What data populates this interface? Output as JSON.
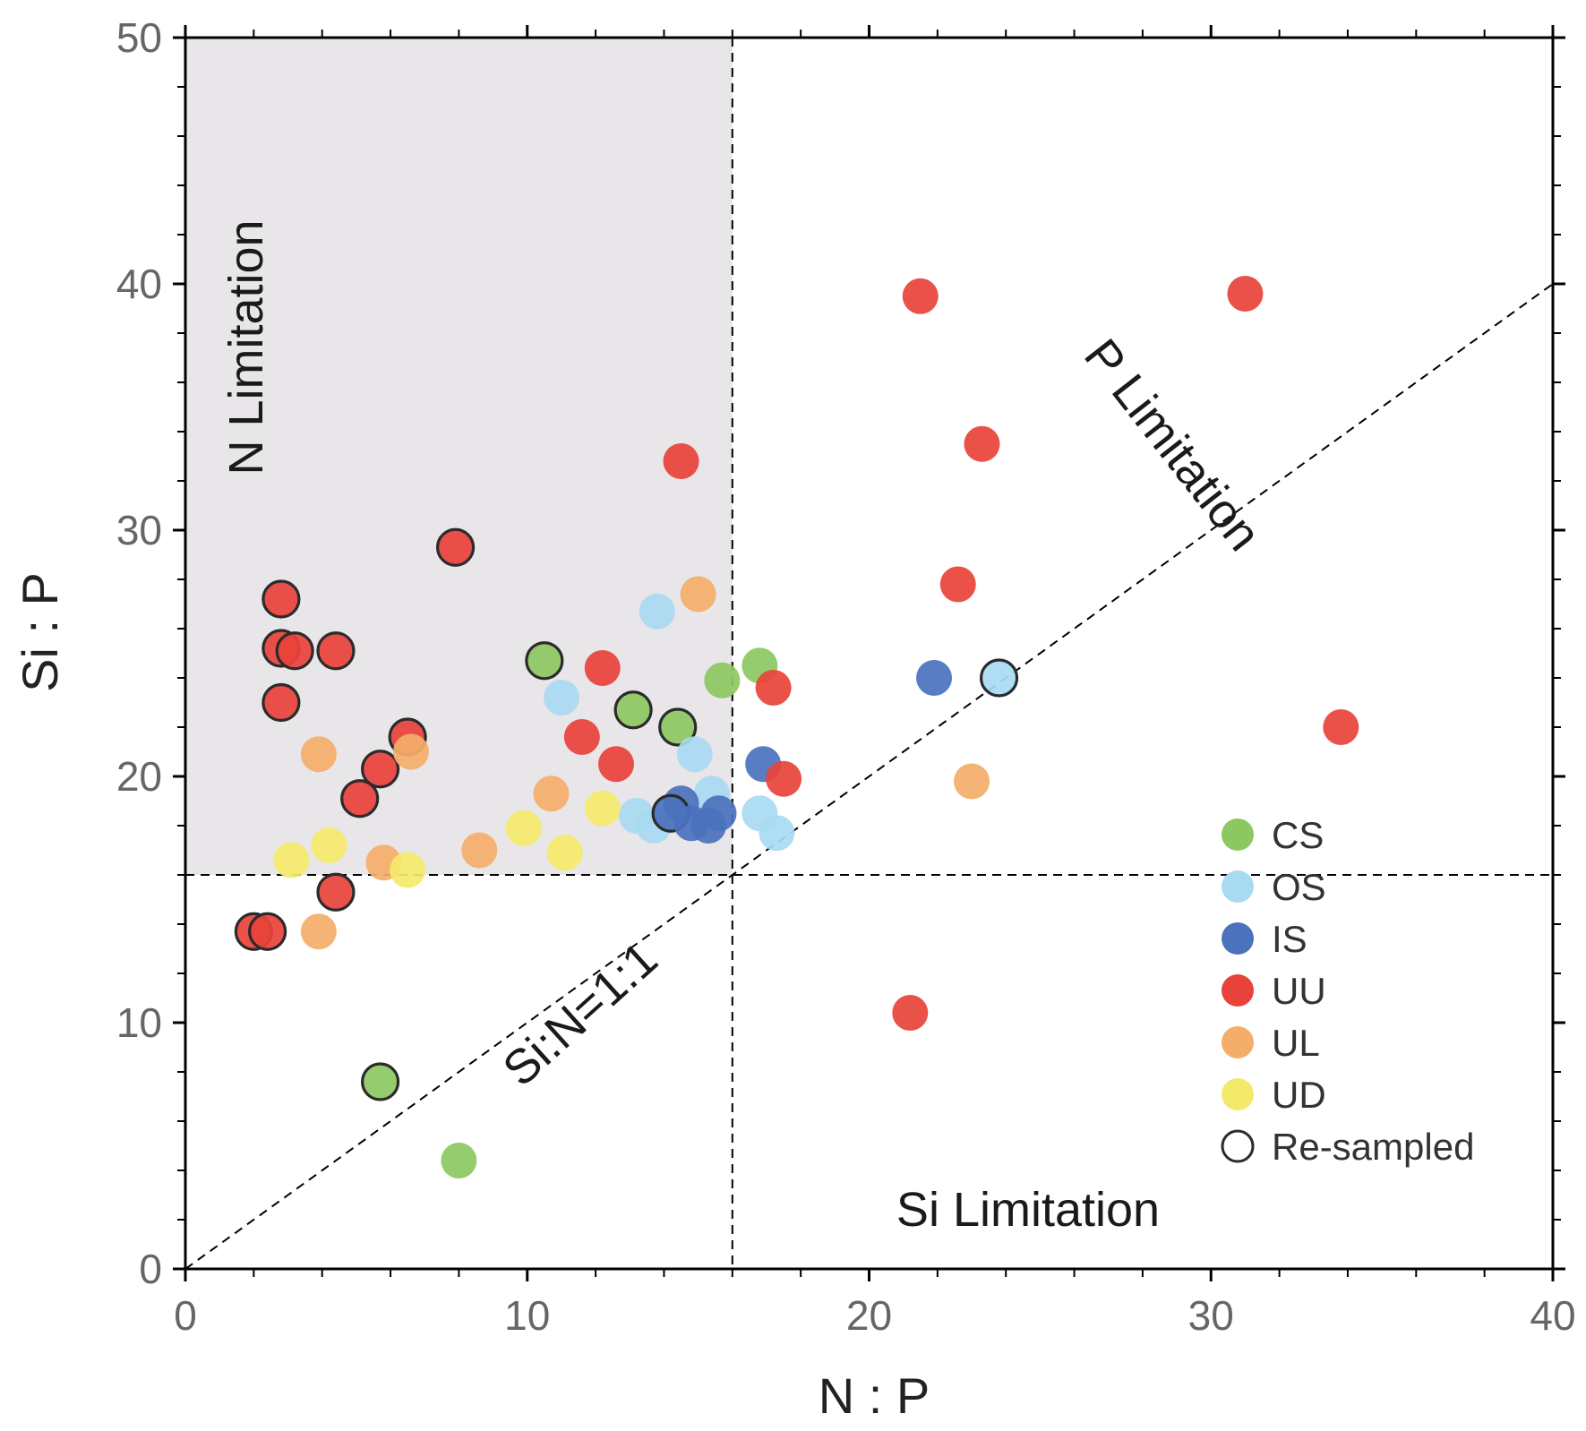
{
  "chart_data": {
    "type": "scatter",
    "xlabel": "N : P",
    "ylabel": "Si : P",
    "xlim": [
      0,
      40
    ],
    "ylim": [
      0,
      50
    ],
    "xticks": [
      0,
      10,
      20,
      30,
      40
    ],
    "yticks": [
      0,
      10,
      20,
      30,
      40,
      50
    ],
    "x_tick_labels": [
      "0",
      "10",
      "20",
      "30",
      "40"
    ],
    "y_tick_labels": [
      "0",
      "10",
      "20",
      "30",
      "40",
      "50"
    ],
    "x_minor_step": 2,
    "y_minor_step": 2,
    "reference_lines": {
      "vertical_x": 16,
      "horizontal_y": 16,
      "diagonal_label": "Si:N=1:1"
    },
    "shaded_region": {
      "x": [
        0,
        16
      ],
      "y": [
        16,
        50
      ],
      "color": "#e8e6e8"
    },
    "region_labels": {
      "n_limitation": "N Limitation",
      "p_limitation": "P Limitation",
      "si_limitation": "Si Limitation"
    },
    "legend_position": "bottom-right",
    "legend": [
      {
        "name": "CS",
        "color": "#8cc861"
      },
      {
        "name": "OS",
        "color": "#a8daf2"
      },
      {
        "name": "IS",
        "color": "#4a72bd"
      },
      {
        "name": "UU",
        "color": "#e8423a"
      },
      {
        "name": "UL",
        "color": "#f4ae6a"
      },
      {
        "name": "UD",
        "color": "#f4ea6a"
      },
      {
        "name": "Re-sampled",
        "color": "none"
      }
    ],
    "series": [
      {
        "name": "CS",
        "color": "#8cc861",
        "points": [
          {
            "x": 10.5,
            "y": 24.7,
            "resampled": true
          },
          {
            "x": 13.1,
            "y": 22.7,
            "resampled": true
          },
          {
            "x": 14.4,
            "y": 22.0,
            "resampled": true
          },
          {
            "x": 15.7,
            "y": 23.9,
            "resampled": false
          },
          {
            "x": 16.8,
            "y": 24.5,
            "resampled": false
          },
          {
            "x": 5.7,
            "y": 7.6,
            "resampled": true
          },
          {
            "x": 8.0,
            "y": 4.4,
            "resampled": false
          }
        ]
      },
      {
        "name": "OS",
        "color": "#a8daf2",
        "points": [
          {
            "x": 13.8,
            "y": 26.7,
            "resampled": false
          },
          {
            "x": 11.0,
            "y": 23.2,
            "resampled": false
          },
          {
            "x": 14.9,
            "y": 20.9,
            "resampled": false
          },
          {
            "x": 15.4,
            "y": 19.3,
            "resampled": false
          },
          {
            "x": 13.2,
            "y": 18.4,
            "resampled": false
          },
          {
            "x": 13.7,
            "y": 18.0,
            "resampled": false
          },
          {
            "x": 16.8,
            "y": 18.5,
            "resampled": false
          },
          {
            "x": 17.3,
            "y": 17.7,
            "resampled": false
          },
          {
            "x": 23.8,
            "y": 24.0,
            "resampled": true
          }
        ]
      },
      {
        "name": "IS",
        "color": "#4a72bd",
        "points": [
          {
            "x": 14.5,
            "y": 18.9,
            "resampled": false
          },
          {
            "x": 14.2,
            "y": 18.5,
            "resampled": true
          },
          {
            "x": 14.8,
            "y": 18.1,
            "resampled": false
          },
          {
            "x": 15.3,
            "y": 18.0,
            "resampled": false
          },
          {
            "x": 15.6,
            "y": 18.5,
            "resampled": false
          },
          {
            "x": 16.9,
            "y": 20.5,
            "resampled": false
          },
          {
            "x": 21.9,
            "y": 24.0,
            "resampled": false
          }
        ]
      },
      {
        "name": "UU",
        "color": "#e8423a",
        "points": [
          {
            "x": 2.8,
            "y": 27.2,
            "resampled": true
          },
          {
            "x": 2.8,
            "y": 25.2,
            "resampled": true
          },
          {
            "x": 3.2,
            "y": 25.1,
            "resampled": true
          },
          {
            "x": 4.4,
            "y": 25.1,
            "resampled": true
          },
          {
            "x": 2.8,
            "y": 23.0,
            "resampled": true
          },
          {
            "x": 6.5,
            "y": 21.6,
            "resampled": true
          },
          {
            "x": 5.7,
            "y": 20.3,
            "resampled": true
          },
          {
            "x": 5.1,
            "y": 19.1,
            "resampled": true
          },
          {
            "x": 4.4,
            "y": 15.3,
            "resampled": true
          },
          {
            "x": 2.0,
            "y": 13.7,
            "resampled": true
          },
          {
            "x": 2.4,
            "y": 13.7,
            "resampled": true
          },
          {
            "x": 7.9,
            "y": 29.3,
            "resampled": true
          },
          {
            "x": 14.5,
            "y": 32.8,
            "resampled": false
          },
          {
            "x": 12.2,
            "y": 24.4,
            "resampled": false
          },
          {
            "x": 11.6,
            "y": 21.6,
            "resampled": false
          },
          {
            "x": 12.6,
            "y": 20.5,
            "resampled": false
          },
          {
            "x": 17.2,
            "y": 23.6,
            "resampled": false
          },
          {
            "x": 17.5,
            "y": 19.9,
            "resampled": false
          },
          {
            "x": 21.5,
            "y": 39.5,
            "resampled": false
          },
          {
            "x": 31.0,
            "y": 39.6,
            "resampled": false
          },
          {
            "x": 23.3,
            "y": 33.5,
            "resampled": false
          },
          {
            "x": 22.6,
            "y": 27.8,
            "resampled": false
          },
          {
            "x": 33.8,
            "y": 22.0,
            "resampled": false
          },
          {
            "x": 21.2,
            "y": 10.4,
            "resampled": false
          }
        ]
      },
      {
        "name": "UL",
        "color": "#f4ae6a",
        "points": [
          {
            "x": 15.0,
            "y": 27.4,
            "resampled": false
          },
          {
            "x": 3.9,
            "y": 20.9,
            "resampled": false
          },
          {
            "x": 6.6,
            "y": 21.0,
            "resampled": false
          },
          {
            "x": 10.7,
            "y": 19.3,
            "resampled": false
          },
          {
            "x": 8.6,
            "y": 17.0,
            "resampled": false
          },
          {
            "x": 5.8,
            "y": 16.5,
            "resampled": false
          },
          {
            "x": 3.9,
            "y": 13.7,
            "resampled": false
          },
          {
            "x": 23.0,
            "y": 19.8,
            "resampled": false
          }
        ]
      },
      {
        "name": "UD",
        "color": "#f4ea6a",
        "points": [
          {
            "x": 3.1,
            "y": 16.6,
            "resampled": false
          },
          {
            "x": 4.2,
            "y": 17.2,
            "resampled": false
          },
          {
            "x": 6.5,
            "y": 16.2,
            "resampled": false
          },
          {
            "x": 9.9,
            "y": 17.9,
            "resampled": false
          },
          {
            "x": 11.1,
            "y": 16.9,
            "resampled": false
          },
          {
            "x": 12.2,
            "y": 18.7,
            "resampled": false
          }
        ]
      }
    ]
  }
}
